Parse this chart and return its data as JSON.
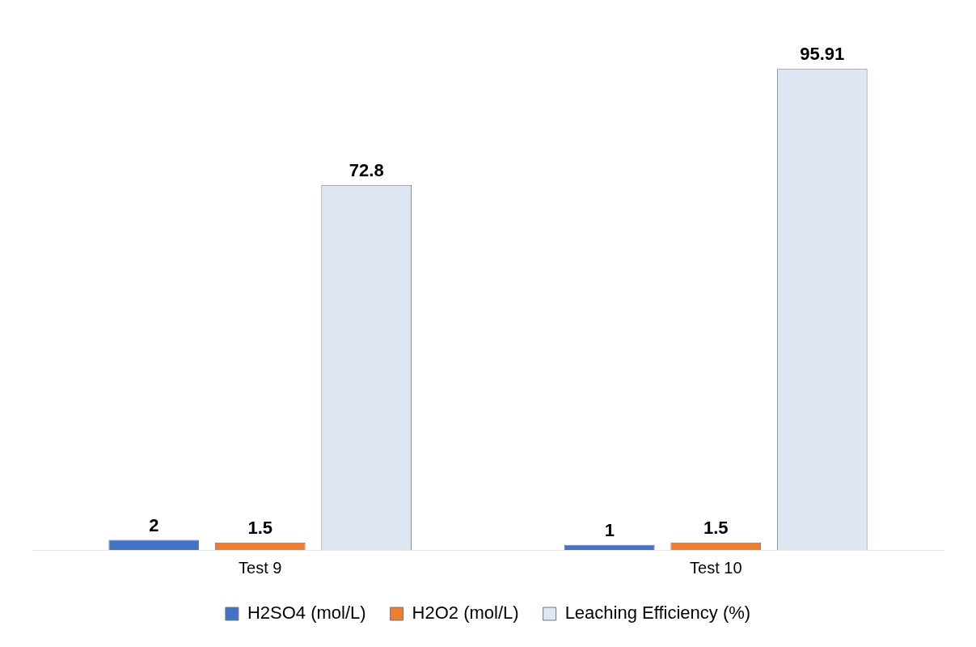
{
  "chart_data": {
    "type": "bar",
    "categories": [
      "Test 9",
      "Test 10"
    ],
    "series": [
      {
        "name": "H2SO4 (mol/L)",
        "color": "#4472c4",
        "values": [
          2,
          1
        ]
      },
      {
        "name": "H2O2 (mol/L)",
        "color": "#ed7d31",
        "values": [
          1.5,
          1.5
        ]
      },
      {
        "name": "Leaching Efficiency (%)",
        "color": "#dfe6f4",
        "values": [
          72.8,
          95.91
        ]
      }
    ],
    "data_labels": true,
    "legend": "bottom",
    "grid": false
  }
}
